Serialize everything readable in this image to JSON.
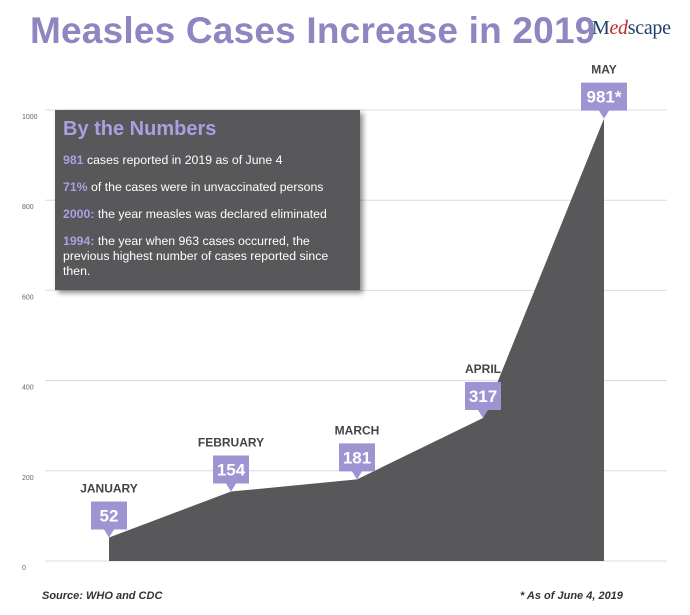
{
  "title": "Measles Cases Increase in 2019",
  "brand": {
    "text_before": "M",
    "accent": "ed",
    "text_after": "scape"
  },
  "info_box": {
    "heading": "By the Numbers",
    "facts": [
      {
        "highlight": "981",
        "text": " cases reported in 2019 as of June 4"
      },
      {
        "highlight": "71%",
        "text": " of the cases were in unvaccinated persons"
      },
      {
        "highlight": "2000:",
        "text": " the year measles was declared eliminated"
      },
      {
        "highlight": "1994:",
        "text": " the year when 963 cases occurred, the previous highest number of cases reported since then."
      }
    ]
  },
  "footer": {
    "source": "Source: WHO and CDC",
    "note": "* As of June 4, 2019"
  },
  "colors": {
    "title": "#8d86c1",
    "area": "#58575a",
    "badge": "#9c95d1",
    "grid": "#dcdcdc",
    "box": "#58575a",
    "highlight": "#a8a0e0"
  },
  "chart_data": {
    "type": "area",
    "categories": [
      "JANUARY",
      "FEBRUARY",
      "MARCH",
      "APRIL",
      "MAY"
    ],
    "values": [
      52,
      154,
      181,
      317,
      981
    ],
    "value_labels": [
      "52",
      "154",
      "181",
      "317",
      "981*"
    ],
    "y_ticks": [
      0,
      200,
      400,
      600,
      800,
      1000
    ],
    "ylim": [
      0,
      1000
    ],
    "grid": true
  }
}
